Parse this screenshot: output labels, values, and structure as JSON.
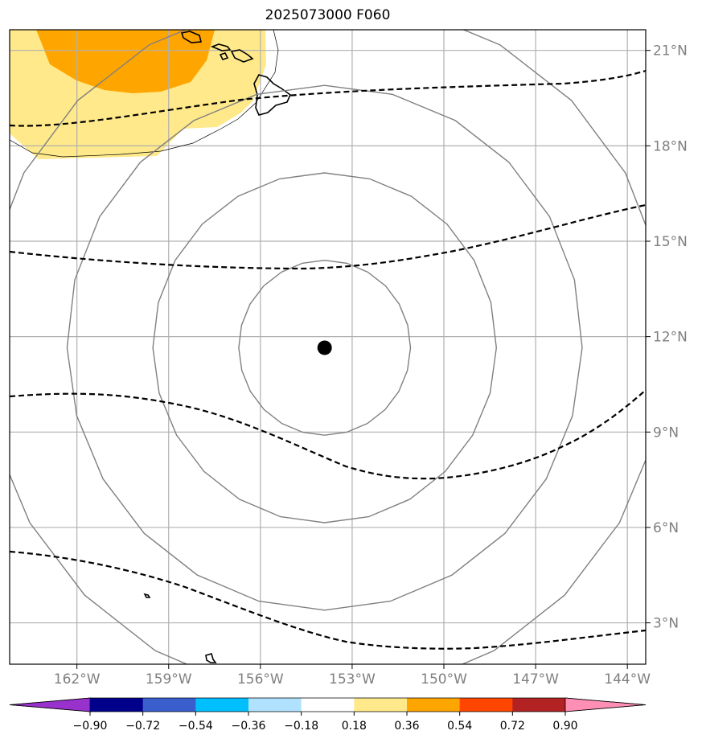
{
  "title": "2025073000 F060",
  "map": {
    "lon_min": -164.2,
    "lon_max": -143.4,
    "lat_min": 1.7,
    "lat_max": 21.65,
    "lat_ticks": [
      {
        "value": 3,
        "label": "3°N"
      },
      {
        "value": 6,
        "label": "6°N"
      },
      {
        "value": 9,
        "label": "9°N"
      },
      {
        "value": 12,
        "label": "12°N"
      },
      {
        "value": 15,
        "label": "15°N"
      },
      {
        "value": 18,
        "label": "18°N"
      },
      {
        "value": 21,
        "label": "21°N"
      }
    ],
    "lon_ticks": [
      {
        "value": -162,
        "label": "162°W"
      },
      {
        "value": -159,
        "label": "159°W"
      },
      {
        "value": -156,
        "label": "156°W"
      },
      {
        "value": -153,
        "label": "153°W"
      },
      {
        "value": -150,
        "label": "150°W"
      },
      {
        "value": -147,
        "label": "147°W"
      },
      {
        "value": -144,
        "label": "144°W"
      }
    ],
    "storm_center": {
      "lon": -153.9,
      "lat": 11.65
    },
    "range_ring_radii_deg": [
      2.75,
      5.5,
      8.25,
      11.0
    ],
    "colors": {
      "grid": "#b0b0b0",
      "ring": "#808080",
      "contour": "#000000",
      "storm": "#000000",
      "shade_low": "#ffe98a",
      "shade_high": "#ffa500"
    }
  },
  "colorbar": {
    "ticks": [
      "−0.90",
      "−0.72",
      "−0.54",
      "−0.36",
      "−0.18",
      "0.18",
      "0.36",
      "0.54",
      "0.72",
      "0.90"
    ],
    "colors": [
      "#9932cc",
      "#00008b",
      "#3a5fcd",
      "#00bfff",
      "#b0e2ff",
      "#ffffff",
      "#ffe98a",
      "#ffa500",
      "#ff4500",
      "#b22222",
      "#ff8fb4"
    ]
  }
}
